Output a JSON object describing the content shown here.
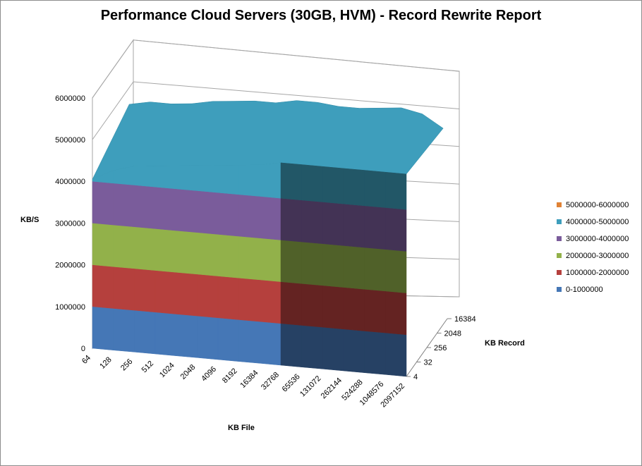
{
  "chart_data": {
    "type": "surface",
    "title": "Performance Cloud Servers (30GB, HVM) - Record Rewrite Report",
    "xlabel": "KB File",
    "ylabel": "KB Record",
    "zlabel": "KB/S",
    "categories": [
      "64",
      "128",
      "256",
      "512",
      "1024",
      "2048",
      "4096",
      "8192",
      "16384",
      "32768",
      "65536",
      "131072",
      "262144",
      "524288",
      "1048576",
      "2097152"
    ],
    "record_ticks": [
      "4",
      "32",
      "256",
      "2048",
      "16384"
    ],
    "z_ticks": [
      "0",
      "1000000",
      "2000000",
      "3000000",
      "4000000",
      "5000000",
      "6000000"
    ],
    "zlim": [
      0,
      6000000
    ],
    "front_values": [
      4050000,
      4300000,
      4450000,
      4500000,
      4550000,
      4600000,
      4650000,
      4700000,
      4750000,
      4850000,
      4850000,
      4850000,
      4850000,
      4850000,
      4850000,
      4850000
    ],
    "back_values": [
      4600000,
      4700000,
      4700000,
      4750000,
      4850000,
      4900000,
      4950000,
      4950000,
      5050000,
      5050000,
      5000000,
      5000000,
      5050000,
      5100000,
      5000000,
      4700000
    ],
    "legend": [
      {
        "label": "5000000-6000000",
        "color": "#E08235"
      },
      {
        "label": "4000000-5000000",
        "color": "#3E9EBC"
      },
      {
        "label": "3000000-4000000",
        "color": "#7A5C9B"
      },
      {
        "label": "2000000-3000000",
        "color": "#92B14A"
      },
      {
        "label": "1000000-2000000",
        "color": "#B5403D"
      },
      {
        "label": "0-1000000",
        "color": "#4577B6"
      }
    ],
    "legend_position": "right",
    "grid": true
  }
}
